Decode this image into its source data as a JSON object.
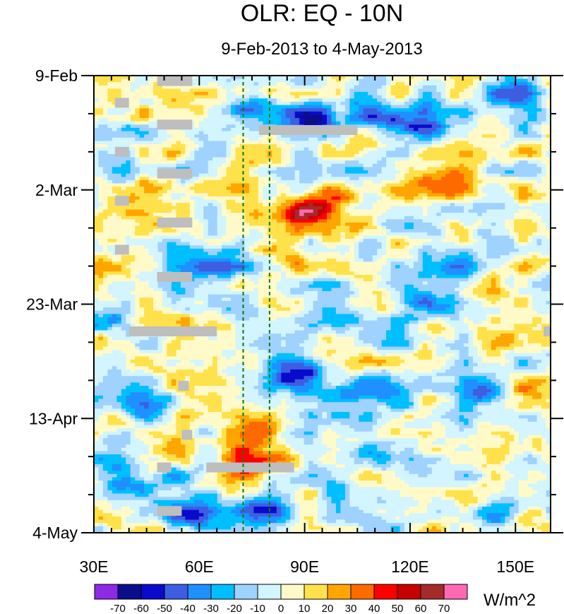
{
  "chart_data": {
    "type": "heatmap",
    "title": "OLR: EQ - 10N",
    "subtitle": "9-Feb-2013 to 4-May-2013",
    "units": "W/m^2",
    "x": {
      "name": "longitude",
      "range": [
        30,
        160
      ],
      "major_ticks": [
        30,
        60,
        90,
        120,
        150
      ],
      "tick_labels": [
        "30E",
        "60E",
        "90E",
        "120E",
        "150E"
      ]
    },
    "y": {
      "name": "time",
      "range_days": [
        0,
        84
      ],
      "start_label": "9-Feb",
      "end_label": "4-May",
      "major_ticks": [
        0,
        21,
        42,
        63,
        84
      ],
      "tick_labels": [
        "9-Feb",
        "2-Mar",
        "23-Mar",
        "13-Apr",
        "4-May"
      ]
    },
    "reference_lines_lon": [
      72.5,
      80
    ],
    "contour_levels": [
      -70,
      -60,
      -50,
      -40,
      -30,
      -20,
      -10,
      0,
      10,
      20,
      30,
      40,
      50,
      60,
      70
    ],
    "colorbar_colors": [
      "#8c2ae6",
      "#0d0d8c",
      "#0a0acd",
      "#3d5ee0",
      "#1e90ff",
      "#00bfff",
      "#a0d2ff",
      "#d2f5ff",
      "#fffac8",
      "#ffe14b",
      "#ffa500",
      "#ff6a00",
      "#ff0000",
      "#c80000",
      "#a52a2a",
      "#ff69b4"
    ],
    "missing_color": "#bebebe",
    "anomaly_features": [
      {
        "lon": 92,
        "day": 8,
        "value": -55
      },
      {
        "lon": 120,
        "day": 9,
        "value": -45
      },
      {
        "lon": 110,
        "day": 7,
        "value": -40
      },
      {
        "lon": 150,
        "day": 3,
        "value": -35
      },
      {
        "lon": 75,
        "day": 6,
        "value": -45
      },
      {
        "lon": 88,
        "day": 27,
        "value": 40
      },
      {
        "lon": 95,
        "day": 24,
        "value": 50
      },
      {
        "lon": 85,
        "day": 34,
        "value": 30
      },
      {
        "lon": 80,
        "day": 79,
        "value": -55
      },
      {
        "lon": 60,
        "day": 81,
        "value": -50
      },
      {
        "lon": 88,
        "day": 54,
        "value": -55
      },
      {
        "lon": 108,
        "day": 58,
        "value": -50
      },
      {
        "lon": 140,
        "day": 57,
        "value": -45
      },
      {
        "lon": 125,
        "day": 42,
        "value": -30
      },
      {
        "lon": 78,
        "day": 71,
        "value": 45
      },
      {
        "lon": 75,
        "day": 65,
        "value": 30
      },
      {
        "lon": 62,
        "day": 60,
        "value": 25
      },
      {
        "lon": 50,
        "day": 20,
        "value": 15
      },
      {
        "lon": 42,
        "day": 75,
        "value": -30
      },
      {
        "lon": 35,
        "day": 44,
        "value": -25
      },
      {
        "lon": 45,
        "day": 60,
        "value": -20
      },
      {
        "lon": 128,
        "day": 20,
        "value": 20
      },
      {
        "lon": 145,
        "day": 48,
        "value": 15
      },
      {
        "lon": 148,
        "day": 80,
        "value": -25
      },
      {
        "lon": 158,
        "day": 83,
        "value": 30
      },
      {
        "lon": 155,
        "day": 58,
        "value": 25
      },
      {
        "lon": 120,
        "day": 73,
        "value": -20
      },
      {
        "lon": 130,
        "day": 35,
        "value": -25
      },
      {
        "lon": 110,
        "day": 68,
        "value": -25
      },
      {
        "lon": 65,
        "day": 35,
        "value": -30
      }
    ],
    "missing_segments": [
      {
        "lon0": 77,
        "lon1": 105,
        "day": 10
      },
      {
        "lon0": 40,
        "lon1": 65,
        "day": 47
      },
      {
        "lon0": 62,
        "lon1": 87,
        "day": 72
      },
      {
        "lon0": 48,
        "lon1": 58,
        "day": 1
      },
      {
        "lon0": 48,
        "lon1": 58,
        "day": 9
      },
      {
        "lon0": 48,
        "lon1": 58,
        "day": 18
      },
      {
        "lon0": 48,
        "lon1": 58,
        "day": 27
      },
      {
        "lon0": 48,
        "lon1": 58,
        "day": 37
      },
      {
        "lon0": 54,
        "lon1": 57,
        "day": 57
      },
      {
        "lon0": 55,
        "lon1": 58,
        "day": 66
      },
      {
        "lon0": 48,
        "lon1": 52,
        "day": 72
      },
      {
        "lon0": 48,
        "lon1": 55,
        "day": 80
      },
      {
        "lon0": 36,
        "lon1": 40,
        "day": 5
      },
      {
        "lon0": 36,
        "lon1": 40,
        "day": 14
      },
      {
        "lon0": 36,
        "lon1": 40,
        "day": 23
      },
      {
        "lon0": 36,
        "lon1": 40,
        "day": 32
      },
      {
        "lon0": 158,
        "lon1": 160,
        "day": 47
      }
    ]
  }
}
